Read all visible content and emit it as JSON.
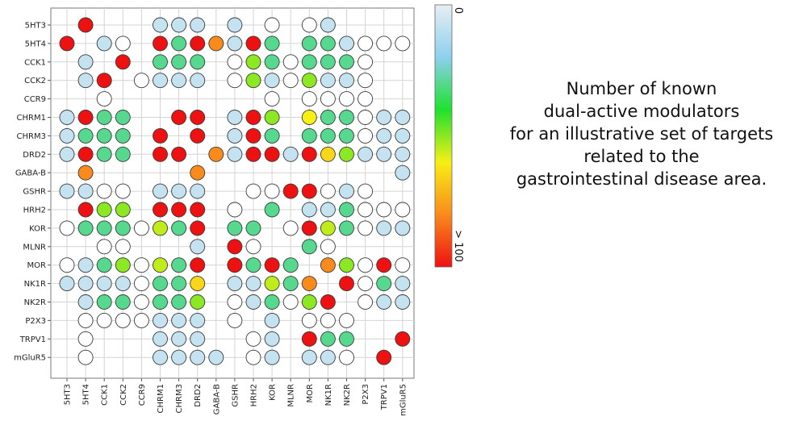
{
  "chart_data": {
    "type": "heatmap",
    "targets": [
      "5HT3",
      "5HT4",
      "CCK1",
      "CCK2",
      "CCR9",
      "CHRM1",
      "CHRM3",
      "DRD2",
      "GABA-B",
      "GSHR",
      "HRH2",
      "KOR",
      "MLNR",
      "MOR",
      "NK1R",
      "NK2R",
      "P2X3",
      "TRPV1",
      "mGluR5"
    ],
    "colorbar": {
      "min_label": "0",
      "max_label": "> 100",
      "stops": [
        "#e8eef2",
        "#8dd0ee",
        "#1ee12e",
        "#f7ef16",
        "#f98b1c",
        "#ee1111"
      ]
    },
    "empty_ring_color": "#ffffff",
    "cell_encoding": "null = no marker; 0 = empty ring; 1-100 = number of dual-active modulators (100 means > 100)",
    "matrix": [
      [
        null,
        100,
        null,
        null,
        null,
        8,
        8,
        8,
        null,
        8,
        null,
        0,
        null,
        0,
        8,
        null,
        null,
        null,
        null
      ],
      [
        100,
        null,
        8,
        0,
        null,
        100,
        30,
        100,
        80,
        8,
        100,
        30,
        null,
        30,
        30,
        8,
        0,
        0,
        0
      ],
      [
        null,
        8,
        null,
        100,
        null,
        30,
        30,
        30,
        null,
        0,
        50,
        30,
        0,
        30,
        30,
        30,
        0,
        null,
        null
      ],
      [
        null,
        8,
        100,
        null,
        0,
        8,
        8,
        8,
        null,
        0,
        50,
        8,
        0,
        50,
        8,
        8,
        0,
        null,
        null
      ],
      [
        null,
        null,
        0,
        null,
        null,
        null,
        null,
        null,
        null,
        null,
        null,
        0,
        null,
        0,
        0,
        0,
        0,
        null,
        null
      ],
      [
        8,
        100,
        30,
        30,
        null,
        null,
        100,
        100,
        null,
        8,
        100,
        50,
        null,
        60,
        30,
        30,
        0,
        8,
        8
      ],
      [
        8,
        30,
        30,
        30,
        null,
        100,
        null,
        100,
        null,
        8,
        100,
        30,
        null,
        30,
        30,
        30,
        0,
        8,
        8
      ],
      [
        8,
        100,
        30,
        30,
        null,
        100,
        100,
        null,
        80,
        8,
        100,
        100,
        8,
        100,
        65,
        50,
        8,
        8,
        8
      ],
      [
        null,
        80,
        null,
        null,
        null,
        null,
        null,
        80,
        null,
        null,
        null,
        null,
        null,
        null,
        null,
        null,
        null,
        null,
        8
      ],
      [
        8,
        8,
        0,
        0,
        null,
        8,
        8,
        8,
        null,
        null,
        0,
        0,
        100,
        100,
        0,
        8,
        0,
        null,
        null
      ],
      [
        null,
        100,
        50,
        50,
        null,
        100,
        100,
        100,
        null,
        0,
        null,
        30,
        null,
        8,
        8,
        30,
        0,
        0,
        0
      ],
      [
        0,
        30,
        30,
        30,
        0,
        55,
        30,
        100,
        null,
        30,
        30,
        null,
        0,
        100,
        55,
        30,
        0,
        8,
        8
      ],
      [
        null,
        null,
        0,
        0,
        null,
        null,
        null,
        8,
        null,
        100,
        0,
        null,
        null,
        30,
        0,
        null,
        null,
        null,
        null
      ],
      [
        0,
        8,
        30,
        50,
        0,
        55,
        30,
        100,
        null,
        100,
        30,
        100,
        30,
        null,
        80,
        50,
        0,
        100,
        0
      ],
      [
        8,
        8,
        8,
        8,
        0,
        30,
        30,
        65,
        null,
        8,
        8,
        55,
        30,
        80,
        null,
        100,
        0,
        30,
        8
      ],
      [
        null,
        8,
        30,
        30,
        0,
        30,
        30,
        50,
        null,
        0,
        8,
        30,
        0,
        50,
        100,
        null,
        0,
        8,
        8
      ],
      [
        null,
        0,
        0,
        0,
        0,
        8,
        8,
        8,
        null,
        0,
        null,
        8,
        null,
        0,
        0,
        0,
        null,
        null,
        null
      ],
      [
        null,
        0,
        null,
        null,
        null,
        8,
        8,
        8,
        null,
        null,
        0,
        8,
        null,
        100,
        30,
        30,
        null,
        null,
        100
      ],
      [
        null,
        0,
        null,
        null,
        null,
        8,
        8,
        8,
        8,
        null,
        0,
        8,
        null,
        8,
        8,
        0,
        null,
        100,
        null
      ]
    ]
  },
  "caption": {
    "lines": [
      "Number of known",
      "dual-active modulators",
      "for an illustrative set of targets",
      "related to the",
      "gastrointestinal disease area."
    ]
  }
}
